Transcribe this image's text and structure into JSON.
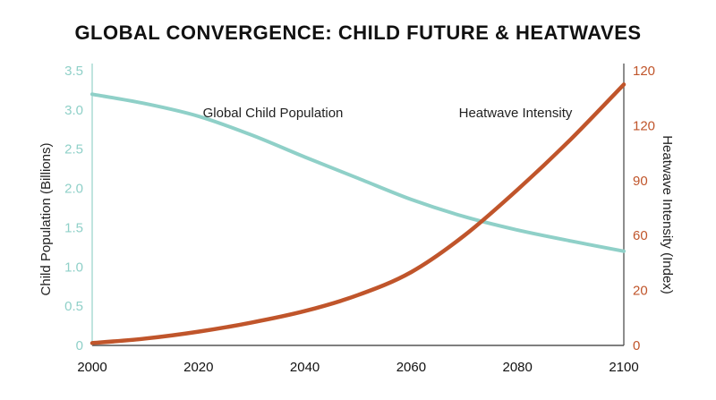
{
  "chart_data": {
    "type": "line",
    "title": "GLOBAL CONVERGENCE: CHILD FUTURE & HEATWAVES",
    "xlabel": "",
    "x_ticks": [
      "2000",
      "2020",
      "2040",
      "2060",
      "2080",
      "2100"
    ],
    "xlim": [
      2000,
      2100
    ],
    "y_left": {
      "label": "Child Population (Billions)",
      "ticks": [
        "0",
        "0.5",
        "1.0",
        "1.5",
        "2.0",
        "2.5",
        "3.0",
        "3.5"
      ],
      "lim": [
        0,
        3.5
      ]
    },
    "y_right": {
      "label": "Heatwave Intensity (Index)",
      "ticks": [
        "0",
        "20",
        "60",
        "90",
        "120",
        "120"
      ],
      "lim": [
        0,
        120
      ]
    },
    "series": [
      {
        "name": "Global Child Population",
        "axis": "left",
        "color": "#8fd0c8",
        "x": [
          2000,
          2010,
          2020,
          2030,
          2040,
          2050,
          2060,
          2070,
          2080,
          2090,
          2100
        ],
        "values": [
          3.2,
          3.08,
          2.92,
          2.68,
          2.4,
          2.13,
          1.86,
          1.64,
          1.47,
          1.33,
          1.2
        ]
      },
      {
        "name": "Heatwave Intensity",
        "axis": "right",
        "color": "#c0552b",
        "x": [
          2000,
          2010,
          2020,
          2030,
          2040,
          2050,
          2060,
          2070,
          2080,
          2090,
          2100
        ],
        "values": [
          1,
          3,
          6,
          10,
          15,
          22,
          32,
          48,
          68,
          90,
          114
        ]
      }
    ],
    "grid": false,
    "legend": "inline-labels"
  }
}
